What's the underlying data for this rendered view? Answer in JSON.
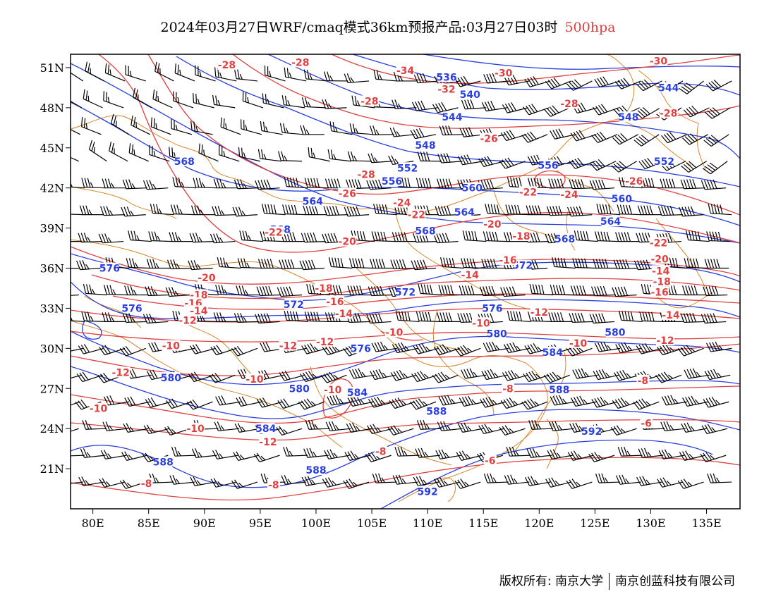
{
  "title": {
    "main": "2024年03月27日WRF/cmaq模式36km预报产品:03月27日03时",
    "level": "500hpa"
  },
  "axes": {
    "x_ticks": [
      "80E",
      "85E",
      "90E",
      "95E",
      "100E",
      "105E",
      "110E",
      "115E",
      "120E",
      "125E",
      "130E",
      "135E"
    ],
    "y_ticks": [
      "51N",
      "48N",
      "45N",
      "42N",
      "39N",
      "36N",
      "33N",
      "30N",
      "27N",
      "24N",
      "21N"
    ]
  },
  "colors": {
    "geopotential_height": "#2a3fe0",
    "temperature": "#e04040",
    "boundaries": "#d9862a",
    "wind_barbs": "#000000"
  },
  "height_labels": [
    {
      "text": "568",
      "lon": 88.2,
      "lat": 44.0
    },
    {
      "text": "576",
      "lon": 81.5,
      "lat": 36.0
    },
    {
      "text": "576",
      "lon": 83.5,
      "lat": 33.0
    },
    {
      "text": "580",
      "lon": 87.0,
      "lat": 27.8
    },
    {
      "text": "588",
      "lon": 86.3,
      "lat": 21.5
    },
    {
      "text": "584",
      "lon": 95.5,
      "lat": 24.0
    },
    {
      "text": "588",
      "lon": 100.0,
      "lat": 20.9
    },
    {
      "text": "580",
      "lon": 98.5,
      "lat": 27.0
    },
    {
      "text": "584",
      "lon": 103.7,
      "lat": 26.7
    },
    {
      "text": "576",
      "lon": 104.0,
      "lat": 30.0
    },
    {
      "text": "572",
      "lon": 98.0,
      "lat": 33.3
    },
    {
      "text": "572",
      "lon": 108.0,
      "lat": 34.2
    },
    {
      "text": "568",
      "lon": 96.8,
      "lat": 38.9
    },
    {
      "text": "568",
      "lon": 109.8,
      "lat": 38.8
    },
    {
      "text": "564",
      "lon": 99.7,
      "lat": 41.0
    },
    {
      "text": "564",
      "lon": 113.3,
      "lat": 40.2
    },
    {
      "text": "560",
      "lon": 114.0,
      "lat": 42.0
    },
    {
      "text": "556",
      "lon": 106.8,
      "lat": 42.5
    },
    {
      "text": "552",
      "lon": 108.2,
      "lat": 43.5
    },
    {
      "text": "548",
      "lon": 109.8,
      "lat": 45.2
    },
    {
      "text": "544",
      "lon": 112.2,
      "lat": 47.3
    },
    {
      "text": "540",
      "lon": 113.8,
      "lat": 49.0
    },
    {
      "text": "536",
      "lon": 111.7,
      "lat": 50.3
    },
    {
      "text": "544",
      "lon": 131.6,
      "lat": 49.5
    },
    {
      "text": "548",
      "lon": 128.0,
      "lat": 47.3
    },
    {
      "text": "552",
      "lon": 131.2,
      "lat": 44.0
    },
    {
      "text": "556",
      "lon": 120.8,
      "lat": 43.7
    },
    {
      "text": "560",
      "lon": 127.4,
      "lat": 41.2
    },
    {
      "text": "564",
      "lon": 126.4,
      "lat": 39.5
    },
    {
      "text": "568",
      "lon": 122.3,
      "lat": 38.2
    },
    {
      "text": "572",
      "lon": 118.5,
      "lat": 36.2
    },
    {
      "text": "576",
      "lon": 115.8,
      "lat": 33.0
    },
    {
      "text": "580",
      "lon": 116.2,
      "lat": 31.1
    },
    {
      "text": "584",
      "lon": 121.2,
      "lat": 29.7
    },
    {
      "text": "580",
      "lon": 126.8,
      "lat": 31.2
    },
    {
      "text": "588",
      "lon": 121.8,
      "lat": 26.9
    },
    {
      "text": "588",
      "lon": 110.8,
      "lat": 25.3
    },
    {
      "text": "592",
      "lon": 124.7,
      "lat": 23.8
    },
    {
      "text": "592",
      "lon": 110.0,
      "lat": 19.3
    }
  ],
  "temp_labels": [
    {
      "text": "-28",
      "lon": 92.0,
      "lat": 51.2
    },
    {
      "text": "-28",
      "lon": 98.6,
      "lat": 51.4
    },
    {
      "text": "-34",
      "lon": 108.0,
      "lat": 50.8
    },
    {
      "text": "-32",
      "lon": 111.7,
      "lat": 49.4
    },
    {
      "text": "-30",
      "lon": 116.8,
      "lat": 50.6
    },
    {
      "text": "-30",
      "lon": 130.7,
      "lat": 51.5
    },
    {
      "text": "-28",
      "lon": 104.8,
      "lat": 48.5
    },
    {
      "text": "-28",
      "lon": 122.7,
      "lat": 48.3
    },
    {
      "text": "-28",
      "lon": 131.6,
      "lat": 47.6
    },
    {
      "text": "-26",
      "lon": 115.5,
      "lat": 45.7
    },
    {
      "text": "-28",
      "lon": 104.5,
      "lat": 43.0
    },
    {
      "text": "-26",
      "lon": 102.8,
      "lat": 41.6
    },
    {
      "text": "-24",
      "lon": 107.7,
      "lat": 40.9
    },
    {
      "text": "-22",
      "lon": 109.0,
      "lat": 40.0
    },
    {
      "text": "-22",
      "lon": 119.0,
      "lat": 41.7
    },
    {
      "text": "-24",
      "lon": 122.7,
      "lat": 41.5
    },
    {
      "text": "-26",
      "lon": 128.5,
      "lat": 42.5
    },
    {
      "text": "-20",
      "lon": 115.8,
      "lat": 39.3
    },
    {
      "text": "-18",
      "lon": 118.4,
      "lat": 38.4
    },
    {
      "text": "-16",
      "lon": 117.2,
      "lat": 36.6
    },
    {
      "text": "-14",
      "lon": 113.8,
      "lat": 35.5
    },
    {
      "text": "-22",
      "lon": 96.2,
      "lat": 38.7
    },
    {
      "text": "-20",
      "lon": 102.8,
      "lat": 38.0
    },
    {
      "text": "-20",
      "lon": 90.2,
      "lat": 35.3
    },
    {
      "text": "-18",
      "lon": 89.5,
      "lat": 34.0
    },
    {
      "text": "-18",
      "lon": 100.7,
      "lat": 34.5
    },
    {
      "text": "-16",
      "lon": 89.0,
      "lat": 33.4
    },
    {
      "text": "-16",
      "lon": 101.7,
      "lat": 33.5
    },
    {
      "text": "-14",
      "lon": 89.5,
      "lat": 32.8
    },
    {
      "text": "-14",
      "lon": 102.5,
      "lat": 32.6
    },
    {
      "text": "-12",
      "lon": 88.5,
      "lat": 32.1
    },
    {
      "text": "-12",
      "lon": 120.0,
      "lat": 32.7
    },
    {
      "text": "-10",
      "lon": 114.8,
      "lat": 31.9
    },
    {
      "text": "-10",
      "lon": 107.0,
      "lat": 31.2
    },
    {
      "text": "-10",
      "lon": 87.0,
      "lat": 30.2
    },
    {
      "text": "-12",
      "lon": 97.5,
      "lat": 30.2
    },
    {
      "text": "-12",
      "lon": 100.8,
      "lat": 30.5
    },
    {
      "text": "-10",
      "lon": 123.5,
      "lat": 30.4
    },
    {
      "text": "-12",
      "lon": 131.3,
      "lat": 30.6
    },
    {
      "text": "-14",
      "lon": 131.8,
      "lat": 32.5
    },
    {
      "text": "-14",
      "lon": 130.9,
      "lat": 35.8
    },
    {
      "text": "-16",
      "lon": 130.8,
      "lat": 34.2
    },
    {
      "text": "-18",
      "lon": 131.0,
      "lat": 35.0
    },
    {
      "text": "-20",
      "lon": 130.8,
      "lat": 36.7
    },
    {
      "text": "-22",
      "lon": 130.7,
      "lat": 37.9
    },
    {
      "text": "-12",
      "lon": 82.5,
      "lat": 28.2
    },
    {
      "text": "-10",
      "lon": 80.5,
      "lat": 25.5
    },
    {
      "text": "-10",
      "lon": 94.5,
      "lat": 27.7
    },
    {
      "text": "-10",
      "lon": 101.5,
      "lat": 26.9
    },
    {
      "text": "-10",
      "lon": 89.2,
      "lat": 24.0
    },
    {
      "text": "-12",
      "lon": 95.7,
      "lat": 23.0
    },
    {
      "text": "-8",
      "lon": 105.8,
      "lat": 22.3
    },
    {
      "text": "-8",
      "lon": 117.2,
      "lat": 27.0
    },
    {
      "text": "-8",
      "lon": 129.3,
      "lat": 27.6
    },
    {
      "text": "-6",
      "lon": 129.6,
      "lat": 24.4
    },
    {
      "text": "-6",
      "lon": 115.6,
      "lat": 21.6
    },
    {
      "text": "-8",
      "lon": 96.2,
      "lat": 19.8
    },
    {
      "text": "-8",
      "lon": 84.8,
      "lat": 19.9
    }
  ]
}
